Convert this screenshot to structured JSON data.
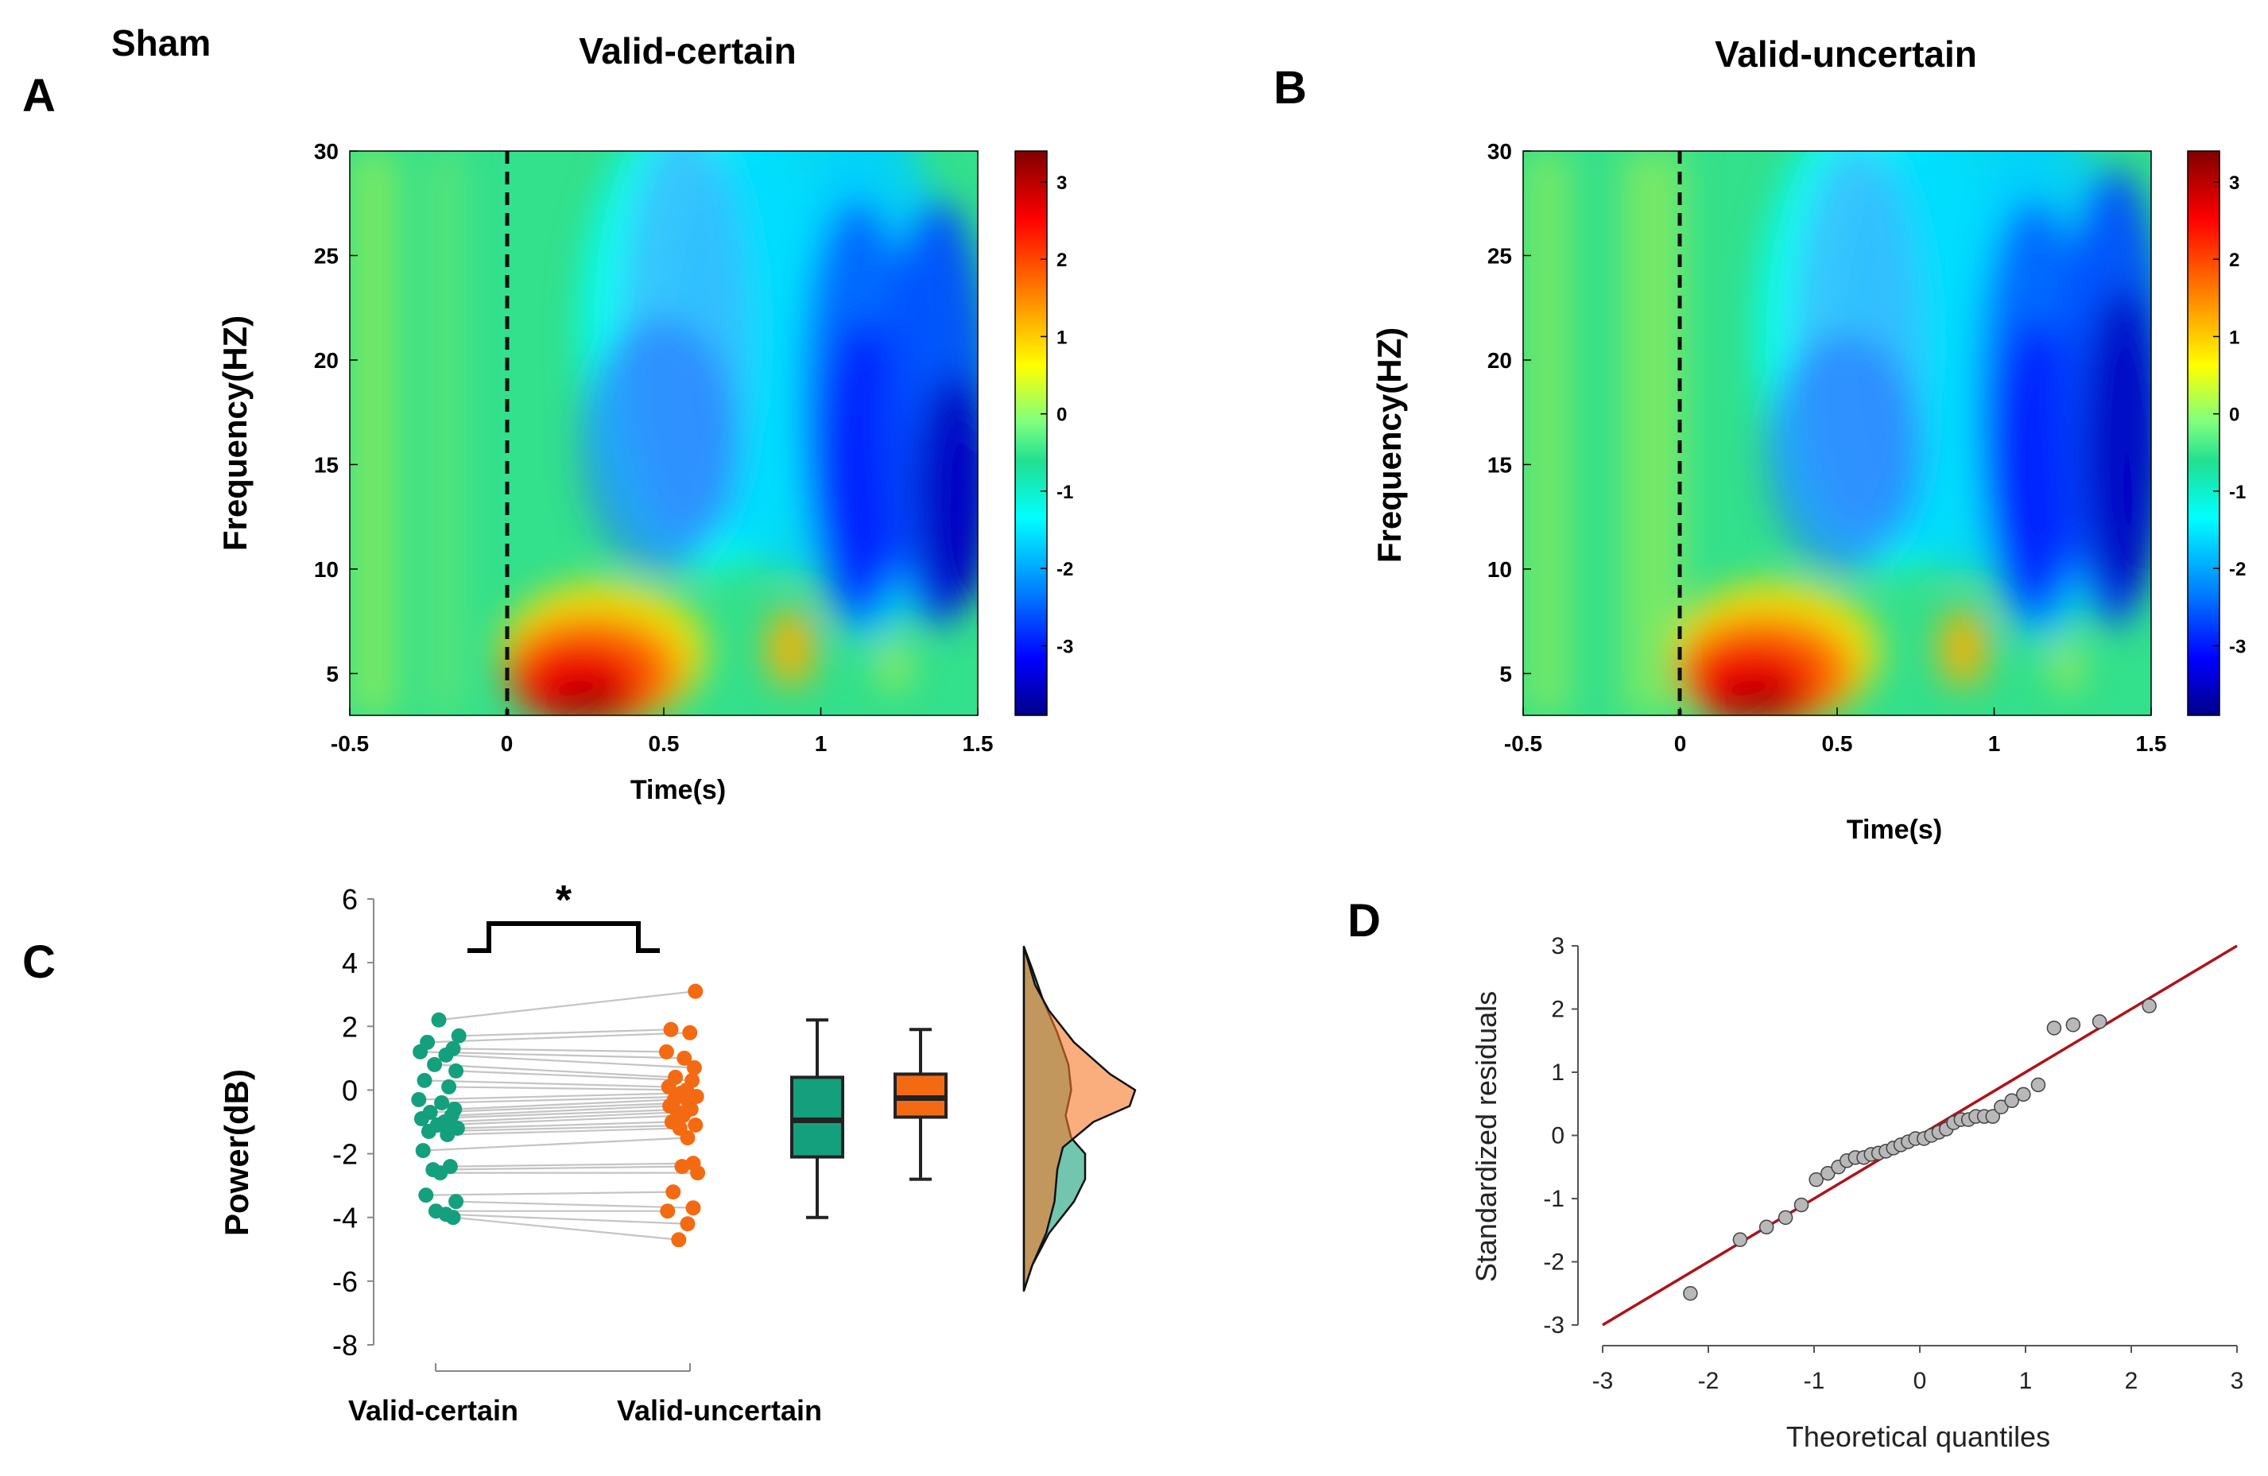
{
  "figure": {
    "condition_label": "Sham",
    "colors": {
      "certain": "#14a07c",
      "uncertain": "#f46a12",
      "fit_line": "#b0121a",
      "qq_point": "#b8b8b8"
    }
  },
  "chart_data": [
    {
      "id": "A",
      "type": "heatmap",
      "panel_label": "A",
      "title": "Valid-certain",
      "xlabel": "Time(s)",
      "ylabel": "Frequency(HZ)",
      "xlim": [
        -0.5,
        1.5
      ],
      "ylim": [
        3,
        30
      ],
      "xticks": [
        "-0.5",
        "0",
        "0.5",
        "1",
        "1.5"
      ],
      "xtick_values": [
        -0.5,
        0,
        0.5,
        1,
        1.5
      ],
      "yticks": [
        "5",
        "10",
        "15",
        "20",
        "25",
        "30"
      ],
      "ytick_values": [
        5,
        10,
        15,
        20,
        25,
        30
      ],
      "colorbar": {
        "ticks": [
          "3",
          "2",
          "1",
          "0",
          "-1",
          "-2",
          "-3"
        ],
        "tick_values": [
          3,
          2,
          1,
          0,
          -1,
          -2,
          -3
        ],
        "range": [
          -3.9,
          3.4
        ]
      },
      "event_line_x": 0
    },
    {
      "id": "B",
      "type": "heatmap",
      "panel_label": "B",
      "title": "Valid-uncertain",
      "xlabel": "Time(s)",
      "ylabel": "Frequency(HZ)",
      "xlim": [
        -0.5,
        1.5
      ],
      "ylim": [
        3,
        30
      ],
      "xticks": [
        "-0.5",
        "0",
        "0.5",
        "1",
        "1.5"
      ],
      "xtick_values": [
        -0.5,
        0,
        0.5,
        1,
        1.5
      ],
      "yticks": [
        "5",
        "10",
        "15",
        "20",
        "25",
        "30"
      ],
      "ytick_values": [
        5,
        10,
        15,
        20,
        25,
        30
      ],
      "colorbar": {
        "ticks": [
          "3",
          "2",
          "1",
          "0",
          "-1",
          "-2",
          "-3"
        ],
        "tick_values": [
          3,
          2,
          1,
          0,
          -1,
          -2,
          -3
        ],
        "range": [
          -3.9,
          3.4
        ]
      },
      "event_line_x": 0
    },
    {
      "id": "C",
      "type": "scatter",
      "panel_label": "C",
      "ylabel": "Power(dB)",
      "ylim": [
        -8,
        6
      ],
      "yticks": [
        "-8",
        "-6",
        "-4",
        "-2",
        "0",
        "2",
        "4",
        "6"
      ],
      "ytick_values": [
        -8,
        -6,
        -4,
        -2,
        0,
        2,
        4,
        6
      ],
      "categories": [
        "Valid-certain",
        "Valid-uncertain"
      ],
      "significance": "*",
      "paired_values": {
        "certain": [
          2.2,
          1.7,
          1.5,
          1.3,
          1.2,
          1.1,
          0.8,
          0.6,
          0.3,
          0.1,
          -0.3,
          -0.4,
          -0.6,
          -0.7,
          -0.8,
          -0.9,
          -1.0,
          -1.1,
          -1.2,
          -1.3,
          -1.4,
          -1.9,
          -2.4,
          -2.5,
          -2.6,
          -3.3,
          -3.5,
          -3.8,
          -3.9,
          -4.0
        ],
        "uncertain": [
          3.1,
          1.9,
          1.8,
          1.2,
          1.0,
          0.7,
          0.4,
          0.3,
          0.1,
          0.0,
          -0.1,
          -0.2,
          -0.3,
          -0.4,
          -0.5,
          -0.6,
          -0.7,
          -0.8,
          -1.0,
          -1.1,
          -1.2,
          -1.5,
          -2.3,
          -2.4,
          -2.6,
          -3.2,
          -3.7,
          -3.8,
          -4.2,
          -4.7
        ]
      },
      "boxplots": [
        {
          "name": "Valid-certain",
          "whisker_low": -4.0,
          "q1": -2.1,
          "median": -0.95,
          "q3": 0.4,
          "whisker_high": 2.2
        },
        {
          "name": "Valid-uncertain",
          "whisker_low": -2.8,
          "q1": -0.85,
          "median": -0.25,
          "q3": 0.5,
          "whisker_high": 1.9
        }
      ],
      "densities": [
        {
          "name": "Valid-certain",
          "y": [
            -6.3,
            -5.5,
            -4.5,
            -3.5,
            -2.8,
            -2.0,
            -1.5,
            -0.8,
            0.0,
            0.8,
            1.8,
            2.8,
            3.8,
            4.5
          ],
          "density": [
            0.0,
            0.15,
            0.45,
            0.9,
            1.1,
            1.1,
            0.85,
            0.75,
            0.85,
            0.8,
            0.6,
            0.35,
            0.15,
            0.0
          ]
        },
        {
          "name": "Valid-uncertain",
          "y": [
            -6.3,
            -5.5,
            -4.5,
            -3.5,
            -2.5,
            -1.8,
            -1.0,
            -0.5,
            0.0,
            0.5,
            1.5,
            2.5,
            3.3,
            4.5
          ],
          "density": [
            0.0,
            0.15,
            0.4,
            0.55,
            0.6,
            0.7,
            1.25,
            1.9,
            2.0,
            1.55,
            0.9,
            0.45,
            0.2,
            0.0
          ]
        }
      ]
    },
    {
      "id": "D",
      "type": "scatter",
      "panel_label": "D",
      "xlabel": "Theoretical quantiles",
      "ylabel": "Standardized residuals",
      "xlim": [
        -3,
        3
      ],
      "ylim": [
        -3,
        3
      ],
      "xticks": [
        "-3",
        "-2",
        "-1",
        "0",
        "1",
        "2",
        "3"
      ],
      "xtick_values": [
        -3,
        -2,
        -1,
        0,
        1,
        2,
        3
      ],
      "yticks": [
        "-3",
        "-2",
        "-1",
        "0",
        "1",
        "2",
        "3"
      ],
      "ytick_values": [
        -3,
        -2,
        -1,
        0,
        1,
        2,
        3
      ],
      "reference_line": {
        "slope": 1,
        "intercept": 0
      },
      "points": {
        "x": [
          -2.17,
          -1.7,
          -1.45,
          -1.27,
          -1.12,
          -0.98,
          -0.87,
          -0.77,
          -0.69,
          -0.61,
          -0.53,
          -0.46,
          -0.39,
          -0.32,
          -0.25,
          -0.18,
          -0.11,
          -0.04,
          0.04,
          0.11,
          0.18,
          0.25,
          0.32,
          0.39,
          0.46,
          0.53,
          0.61,
          0.69,
          0.77,
          0.87,
          0.98,
          1.12,
          1.27,
          1.45,
          1.7,
          2.17
        ],
        "y": [
          -2.5,
          -1.65,
          -1.45,
          -1.3,
          -1.1,
          -0.7,
          -0.6,
          -0.5,
          -0.4,
          -0.35,
          -0.35,
          -0.3,
          -0.28,
          -0.25,
          -0.2,
          -0.15,
          -0.1,
          -0.05,
          -0.05,
          0.0,
          0.05,
          0.1,
          0.2,
          0.25,
          0.25,
          0.3,
          0.3,
          0.3,
          0.45,
          0.55,
          0.65,
          0.8,
          1.7,
          1.75,
          1.8,
          2.05
        ]
      }
    }
  ]
}
